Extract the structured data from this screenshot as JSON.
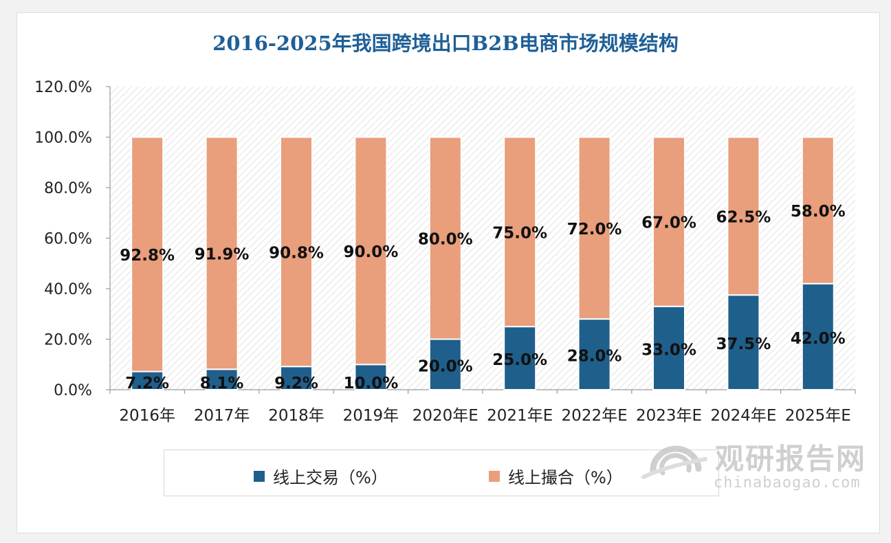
{
  "chart_data": {
    "type": "bar",
    "stacked": true,
    "title": "2016-2025年我国跨境出口B2B电商市场规模结构",
    "categories": [
      "2016年",
      "2017年",
      "2018年",
      "2019年",
      "2020年E",
      "2021年E",
      "2022年E",
      "2023年E",
      "2024年E",
      "2025年E"
    ],
    "series": [
      {
        "name": "线上交易（%）",
        "color": "#1f5f8b",
        "values": [
          7.2,
          8.1,
          9.2,
          10.0,
          20.0,
          25.0,
          28.0,
          33.0,
          37.5,
          42.0
        ],
        "labels": [
          "7.2%",
          "8.1%",
          "9.2%",
          "10.0%",
          "20.0%",
          "25.0%",
          "28.0%",
          "33.0%",
          "37.5%",
          "42.0%"
        ]
      },
      {
        "name": "线上撮合（%）",
        "color": "#e99e7c",
        "values": [
          92.8,
          91.9,
          90.8,
          90.0,
          80.0,
          75.0,
          72.0,
          67.0,
          62.5,
          58.0
        ],
        "labels": [
          "92.8%",
          "91.9%",
          "90.8%",
          "90.0%",
          "80.0%",
          "75.0%",
          "72.0%",
          "67.0%",
          "62.5%",
          "58.0%"
        ]
      }
    ],
    "ylim": [
      0,
      120
    ],
    "yticks": [
      0,
      20,
      40,
      60,
      80,
      100,
      120
    ],
    "ytick_labels": [
      "0.0%",
      "20.0%",
      "40.0%",
      "60.0%",
      "80.0%",
      "100.0%",
      "120.0%"
    ],
    "xlabel": "",
    "ylabel": "",
    "legend_position": "bottom"
  },
  "watermark": {
    "name": "观研报告网",
    "url": "chinabaogao.com"
  }
}
